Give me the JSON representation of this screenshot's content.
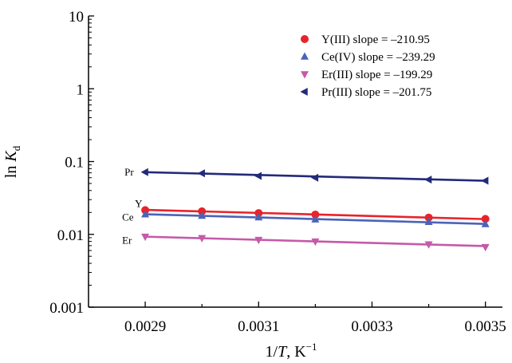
{
  "chart_data": {
    "type": "scatter",
    "xlabel_main": "1/",
    "xlabel_italic": "T",
    "xlabel_unit": ", K",
    "xlabel_sup": "−1",
    "ylabel_main": "ln ",
    "ylabel_italic": "K",
    "ylabel_sub": "d",
    "xlim": [
      0.0028,
      0.00353
    ],
    "ylim": [
      0.001,
      10
    ],
    "y_scale": "log",
    "grid": false,
    "legend_position": "top-right",
    "x_ticks": [
      {
        "value": 0.0029,
        "label": "0.0029"
      },
      {
        "value": 0.0031,
        "label": "0.0031"
      },
      {
        "value": 0.0033,
        "label": "0.0033"
      },
      {
        "value": 0.0035,
        "label": "0.0035"
      }
    ],
    "x_minor_ticks": [
      0.003,
      0.0032,
      0.0034
    ],
    "y_ticks": [
      {
        "value": 0.001,
        "label": "0.001"
      },
      {
        "value": 0.01,
        "label": "0.01"
      },
      {
        "value": 0.1,
        "label": "0.1"
      },
      {
        "value": 1,
        "label": "1"
      },
      {
        "value": 10,
        "label": "10"
      }
    ],
    "series": [
      {
        "name": "Y(III) slope = –210.95",
        "tag": "Y",
        "marker": "circle",
        "color": "#e8232b",
        "x": [
          0.0029,
          0.003,
          0.0031,
          0.0032,
          0.0034,
          0.0035
        ],
        "y": [
          0.0215,
          0.0207,
          0.0196,
          0.0187,
          0.017,
          0.0163
        ],
        "fit": [
          0.0217,
          0.0162
        ]
      },
      {
        "name": "Ce(IV) slope = –239.29",
        "tag": "Ce",
        "marker": "triangle-up",
        "color": "#4b63b8",
        "x": [
          0.0029,
          0.003,
          0.0031,
          0.0032,
          0.0034,
          0.0035
        ],
        "y": [
          0.0188,
          0.018,
          0.0171,
          0.016,
          0.0148,
          0.0138
        ],
        "fit": [
          0.0189,
          0.0139
        ]
      },
      {
        "name": "Er(III) slope = –199.29",
        "tag": "Er",
        "marker": "triangle-down",
        "color": "#c55aa8",
        "x": [
          0.0029,
          0.003,
          0.0031,
          0.0032,
          0.0034,
          0.0035
        ],
        "y": [
          0.0093,
          0.0089,
          0.0084,
          0.008,
          0.0073,
          0.0067
        ],
        "fit": [
          0.0093,
          0.0069
        ]
      },
      {
        "name": "Pr(III) slope = –201.75",
        "tag": "Pr",
        "marker": "triangle-left",
        "color": "#232a7a",
        "x": [
          0.0029,
          0.003,
          0.0031,
          0.0032,
          0.0034,
          0.0035
        ],
        "y": [
          0.0715,
          0.069,
          0.0635,
          0.06,
          0.0565,
          0.0545
        ],
        "fit": [
          0.0715,
          0.0545
        ]
      }
    ]
  }
}
